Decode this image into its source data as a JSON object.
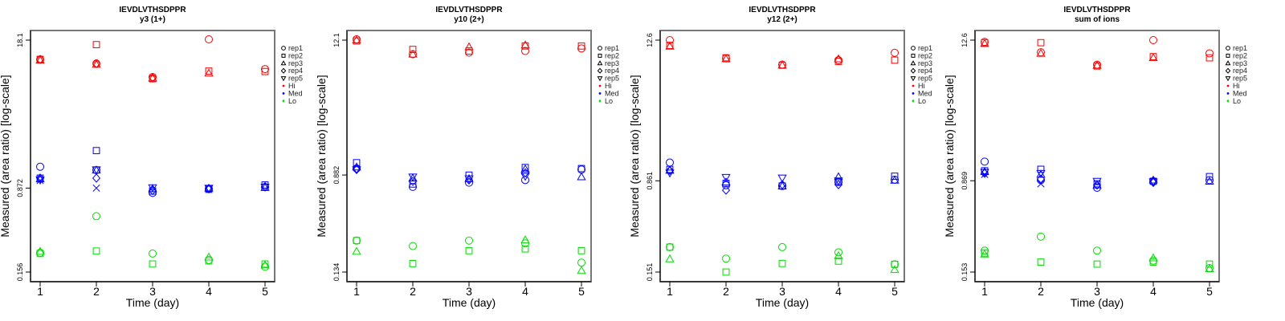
{
  "chart_data": {
    "type": "scatter",
    "x": [
      1,
      2,
      3,
      4,
      5
    ],
    "xlabel": "Time (day)",
    "ylabel": "Measured (area ratio) [log-scale]",
    "yscale": "log",
    "legend": {
      "placement": "right",
      "entries": [
        {
          "label": "rep1",
          "symbol": "circle"
        },
        {
          "label": "rep2",
          "symbol": "square"
        },
        {
          "label": "rep3",
          "symbol": "triangle-up"
        },
        {
          "label": "rep4",
          "symbol": "diamond"
        },
        {
          "label": "rep5",
          "symbol": "triangle-down"
        },
        {
          "label": "Hi",
          "symbol": "dot",
          "color": "#ff0000"
        },
        {
          "label": "Med",
          "symbol": "dot",
          "color": "#0000ff"
        },
        {
          "label": "Lo",
          "symbol": "dot",
          "color": "#00dd00"
        }
      ]
    },
    "colors": {
      "Hi": "#ff0000",
      "Med": "#0000ff",
      "Lo": "#00dd00"
    },
    "panels": [
      {
        "title": "IEVDLVTHSDPPR",
        "subtitle": "y3 (1+)",
        "yticks": [
          "0.156",
          "0.872",
          "18.1"
        ],
        "ylim": [
          0.156,
          18.1
        ],
        "series": [
          {
            "level": "Hi",
            "rep": "rep1",
            "values": [
              12.2,
              11.2,
              8.5,
              18.4,
              10.0
            ]
          },
          {
            "level": "Hi",
            "rep": "rep2",
            "values": [
              12.2,
              16.5,
              8.2,
              9.6,
              9.5
            ]
          },
          {
            "level": "Hi",
            "rep": "rep3",
            "values": [
              12.0,
              11.0,
              8.3,
              9.2,
              null
            ]
          },
          {
            "level": "Hi",
            "rep": "rep4",
            "values": [
              12.2,
              11.2,
              8.4,
              null,
              null
            ]
          },
          {
            "level": "Med",
            "rep": "rep1",
            "values": [
              1.35,
              1.26,
              0.79,
              0.86,
              0.89
            ]
          },
          {
            "level": "Med",
            "rep": "rep2",
            "values": [
              1.07,
              1.88,
              0.82,
              0.85,
              0.93
            ]
          },
          {
            "level": "Med",
            "rep": "rep3",
            "values": [
              1.05,
              1.26,
              0.86,
              0.87,
              0.88
            ]
          },
          {
            "level": "Med",
            "rep": "rep4",
            "values": [
              1.07,
              1.07,
              0.83,
              0.86,
              0.9
            ]
          },
          {
            "level": "Med",
            "rep": "rep5",
            "values": [
              1.03,
              1.27,
              0.88,
              0.87,
              0.89
            ]
          },
          {
            "level": "Med",
            "rep": "x",
            "values": [
              1.02,
              0.872,
              null,
              null,
              null
            ]
          },
          {
            "level": "Lo",
            "rep": "rep1",
            "values": [
              0.232,
              0.49,
              0.228,
              0.2,
              0.174
            ]
          },
          {
            "level": "Lo",
            "rep": "rep2",
            "values": [
              0.228,
              0.24,
              0.184,
              0.196,
              0.184
            ]
          },
          {
            "level": "Lo",
            "rep": "rep3",
            "values": [
              0.238,
              null,
              null,
              0.212,
              0.18
            ]
          }
        ]
      },
      {
        "title": "IEVDLVTHSDPPR",
        "subtitle": "y10 (2+)",
        "yticks": [
          "0.134",
          "0.882",
          "12.1"
        ],
        "ylim": [
          0.134,
          12.1
        ],
        "series": [
          {
            "level": "Hi",
            "rep": "rep1",
            "values": [
              12.3,
              9.2,
              9.5,
              9.8,
              10.3
            ]
          },
          {
            "level": "Hi",
            "rep": "rep2",
            "values": [
              11.9,
              10.1,
              9.8,
              10.8,
              10.8
            ]
          },
          {
            "level": "Hi",
            "rep": "rep3",
            "values": [
              12.1,
              9.2,
              10.6,
              11.0,
              null
            ]
          },
          {
            "level": "Med",
            "rep": "rep1",
            "values": [
              1.0,
              0.7,
              0.76,
              0.8,
              0.98
            ]
          },
          {
            "level": "Med",
            "rep": "rep2",
            "values": [
              1.12,
              0.74,
              0.88,
              1.02,
              1.0
            ]
          },
          {
            "level": "Med",
            "rep": "rep3",
            "values": [
              1.03,
              0.83,
              0.82,
              0.99,
              0.85
            ]
          },
          {
            "level": "Med",
            "rep": "rep4",
            "values": [
              0.98,
              0.78,
              0.8,
              0.92,
              null
            ]
          },
          {
            "level": "Med",
            "rep": "rep5",
            "values": [
              0.98,
              0.85,
              0.82,
              0.86,
              null
            ]
          },
          {
            "level": "Lo",
            "rep": "rep1",
            "values": [
              0.247,
              0.222,
              0.247,
              0.234,
              0.161
            ]
          },
          {
            "level": "Lo",
            "rep": "rep2",
            "values": [
              0.247,
              0.158,
              0.203,
              0.21,
              0.203
            ]
          },
          {
            "level": "Lo",
            "rep": "rep3",
            "values": [
              0.2,
              null,
              null,
              0.25,
              0.138
            ]
          }
        ]
      },
      {
        "title": "IEVDLVTHSDPPR",
        "subtitle": "y12 (2+)",
        "yticks": [
          "0.151",
          "0.861",
          "12.6"
        ],
        "ylim": [
          0.151,
          12.6
        ],
        "series": [
          {
            "level": "Hi",
            "rep": "rep1",
            "values": [
              12.6,
              8.9,
              7.9,
              8.6,
              9.9
            ]
          },
          {
            "level": "Hi",
            "rep": "rep2",
            "values": [
              11.4,
              9.0,
              7.8,
              8.4,
              8.6
            ]
          },
          {
            "level": "Hi",
            "rep": "rep3",
            "values": [
              11.2,
              8.8,
              7.8,
              8.8,
              null
            ]
          },
          {
            "level": "Med",
            "rep": "rep1",
            "values": [
              1.22,
              0.79,
              0.78,
              0.84,
              0.88
            ]
          },
          {
            "level": "Med",
            "rep": "rep2",
            "values": [
              1.07,
              0.82,
              0.78,
              0.85,
              0.94
            ]
          },
          {
            "level": "Med",
            "rep": "rep3",
            "values": [
              1.05,
              0.84,
              0.78,
              0.93,
              0.87
            ]
          },
          {
            "level": "Med",
            "rep": "rep4",
            "values": [
              1.05,
              0.72,
              0.8,
              0.8,
              null
            ]
          },
          {
            "level": "Med",
            "rep": "rep5",
            "values": [
              1.0,
              0.92,
              0.91,
              0.86,
              null
            ]
          },
          {
            "level": "Lo",
            "rep": "rep1",
            "values": [
              0.243,
              0.195,
              0.243,
              0.22,
              0.175
            ]
          },
          {
            "level": "Lo",
            "rep": "rep2",
            "values": [
              0.243,
              0.151,
              0.178,
              0.186,
              0.175
            ]
          },
          {
            "level": "Lo",
            "rep": "rep3",
            "values": [
              0.194,
              null,
              null,
              0.206,
              0.158
            ]
          }
        ]
      },
      {
        "title": "IEVDLVTHSDPPR",
        "subtitle": "sum of ions",
        "yticks": [
          "0.153",
          "0.869",
          "12.6"
        ],
        "ylim": [
          0.153,
          12.6
        ],
        "series": [
          {
            "level": "Hi",
            "rep": "rep1",
            "values": [
              12.2,
              10.0,
              7.9,
              12.6,
              9.8
            ]
          },
          {
            "level": "Hi",
            "rep": "rep2",
            "values": [
              12.0,
              12.0,
              7.7,
              9.2,
              9.0
            ]
          },
          {
            "level": "Hi",
            "rep": "rep3",
            "values": [
              11.8,
              9.8,
              7.8,
              9.0,
              null
            ]
          },
          {
            "level": "Med",
            "rep": "rep1",
            "values": [
              1.25,
              0.88,
              0.76,
              0.86,
              0.88
            ]
          },
          {
            "level": "Med",
            "rep": "rep2",
            "values": [
              1.05,
              1.08,
              0.82,
              0.86,
              0.94
            ]
          },
          {
            "level": "Med",
            "rep": "rep3",
            "values": [
              1.03,
              0.98,
              0.8,
              0.88,
              0.86
            ]
          },
          {
            "level": "Med",
            "rep": "rep4",
            "values": [
              1.0,
              0.9,
              0.8,
              0.84,
              null
            ]
          },
          {
            "level": "Med",
            "rep": "rep5",
            "values": [
              1.02,
              1.0,
              0.86,
              0.85,
              null
            ]
          },
          {
            "level": "Med",
            "rep": "x",
            "values": [
              0.98,
              0.82,
              null,
              null,
              null
            ]
          },
          {
            "level": "Lo",
            "rep": "rep1",
            "values": [
              0.23,
              0.3,
              0.23,
              0.19,
              0.165
            ]
          },
          {
            "level": "Lo",
            "rep": "rep2",
            "values": [
              0.22,
              0.185,
              0.178,
              0.185,
              0.178
            ]
          },
          {
            "level": "Lo",
            "rep": "rep3",
            "values": [
              0.215,
              null,
              null,
              0.2,
              0.163
            ]
          }
        ]
      }
    ]
  }
}
